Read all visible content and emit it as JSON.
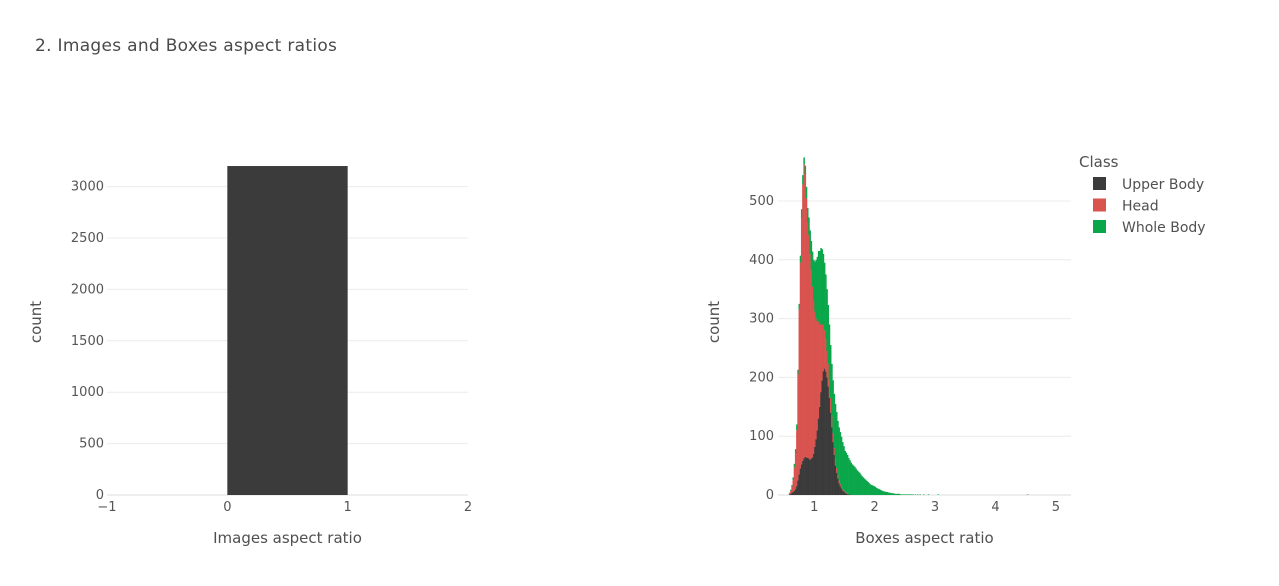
{
  "page_title": "2. Images and Boxes aspect ratios",
  "chart_data": [
    {
      "type": "bar",
      "xlabel": "Images aspect ratio",
      "ylabel": "count",
      "xlim": [
        -1,
        2
      ],
      "ylim": [
        0,
        3200
      ],
      "x_ticks": [
        "−1",
        "0",
        "1",
        "2"
      ],
      "y_ticks": [
        "0",
        "500",
        "1000",
        "1500",
        "2000",
        "2500",
        "3000"
      ],
      "bins": [
        {
          "x0": 0,
          "x1": 1,
          "value": 3200
        }
      ],
      "color": "#3b3b3b",
      "grid": true
    },
    {
      "type": "bar",
      "barmode": "stack",
      "xlabel": "Boxes aspect ratio",
      "ylabel": "count",
      "xlim": [
        0.4,
        5.25
      ],
      "ylim": [
        0,
        560
      ],
      "x_ticks": [
        "1",
        "2",
        "3",
        "4",
        "5"
      ],
      "y_ticks": [
        "0",
        "100",
        "200",
        "300",
        "400",
        "500"
      ],
      "grid": true,
      "legend_title": "Class",
      "legend_position": "top-right",
      "bin_start": 0.4,
      "bin_width": 0.02,
      "series": [
        {
          "name": "Upper Body",
          "color": "#3b3b3b",
          "values": [
            0,
            0,
            0,
            0,
            0,
            0,
            0,
            0,
            0,
            1,
            2,
            4,
            5,
            7,
            10,
            15,
            25,
            35,
            45,
            52,
            58,
            62,
            65,
            64,
            63,
            62,
            60,
            62,
            64,
            70,
            82,
            95,
            110,
            130,
            150,
            175,
            195,
            210,
            215,
            210,
            200,
            185,
            165,
            140,
            115,
            90,
            68,
            50,
            38,
            28,
            20,
            15,
            11,
            8,
            6,
            4,
            3,
            2,
            1,
            1,
            0,
            0,
            0,
            0,
            0,
            0,
            0,
            0,
            0,
            0,
            0,
            0,
            0,
            0,
            0,
            0,
            0,
            0,
            0,
            0
          ]
        },
        {
          "name": "Head",
          "color": "#d9534f",
          "values": [
            0,
            0,
            0,
            0,
            0,
            0,
            0,
            0,
            0,
            2,
            5,
            10,
            20,
            40,
            60,
            95,
            180,
            280,
            350,
            420,
            470,
            500,
            480,
            440,
            400,
            380,
            350,
            320,
            290,
            260,
            230,
            205,
            185,
            165,
            140,
            115,
            95,
            80,
            65,
            55,
            45,
            38,
            30,
            25,
            20,
            15,
            12,
            10,
            8,
            6,
            5,
            4,
            3,
            2,
            2,
            1,
            1,
            1,
            0,
            0,
            0,
            0,
            0,
            0,
            0,
            0,
            0,
            0,
            0,
            0,
            0,
            0,
            0,
            0,
            0,
            0,
            0,
            0,
            0,
            0
          ]
        },
        {
          "name": "Whole Body",
          "color": "#0aa64a",
          "values": [
            0,
            0,
            0,
            0,
            0,
            0,
            0,
            0,
            0,
            1,
            2,
            3,
            5,
            6,
            8,
            10,
            8,
            10,
            12,
            14,
            16,
            12,
            15,
            20,
            25,
            30,
            40,
            50,
            60,
            70,
            85,
            100,
            110,
            120,
            125,
            130,
            128,
            120,
            115,
            110,
            105,
            100,
            95,
            90,
            88,
            90,
            92,
            95,
            95,
            92,
            90,
            88,
            85,
            80,
            75,
            70,
            68,
            65,
            62,
            58,
            55,
            52,
            50,
            48,
            45,
            42,
            40,
            38,
            35,
            32,
            30,
            28,
            26,
            24,
            22,
            20,
            18,
            17,
            16,
            15,
            14,
            12,
            11,
            10,
            9,
            8,
            7,
            6,
            6,
            5,
            5,
            4,
            4,
            3,
            3,
            3,
            2,
            2,
            2,
            2,
            2,
            1,
            1,
            1,
            1,
            1,
            1,
            1,
            1,
            1,
            1,
            1,
            0,
            1,
            0,
            1,
            0,
            1,
            0,
            0,
            1,
            0,
            0,
            0,
            1,
            0,
            0,
            0,
            0,
            0,
            0,
            0,
            1,
            0,
            0,
            0,
            0,
            0,
            0,
            0,
            0,
            0,
            0,
            0,
            0,
            0,
            0,
            0,
            0,
            0,
            0,
            0,
            0,
            0,
            0,
            0,
            0,
            0,
            0,
            0,
            0,
            0,
            0,
            0,
            0,
            0,
            0,
            0,
            0,
            0,
            0,
            0,
            0,
            0,
            0,
            0,
            0,
            0,
            0,
            0,
            0,
            0,
            0,
            0,
            0,
            0,
            0,
            0,
            0,
            0,
            0,
            0,
            0,
            0,
            0,
            0,
            0,
            0,
            0,
            0,
            0,
            0,
            0,
            0,
            0,
            0,
            1,
            0,
            0,
            0,
            0,
            0,
            0,
            0,
            0,
            0,
            0,
            0,
            0,
            0,
            0,
            0,
            0,
            0,
            0,
            0,
            0,
            0,
            0,
            0,
            0,
            0,
            0,
            0,
            0,
            0,
            0,
            0,
            0,
            0,
            0,
            0,
            0,
            0,
            0,
            0,
            0,
            0,
            0,
            0,
            1
          ]
        }
      ]
    }
  ]
}
